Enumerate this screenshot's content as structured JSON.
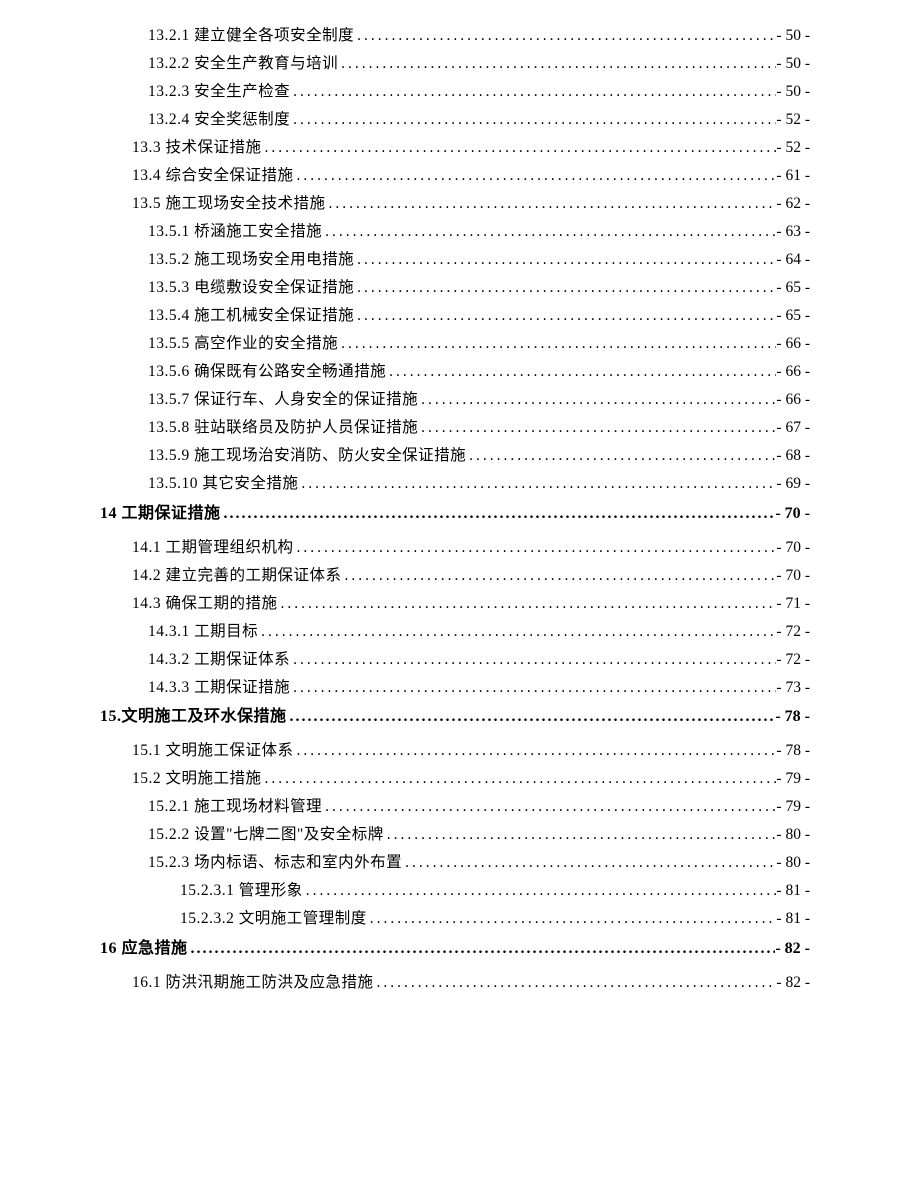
{
  "entries": [
    {
      "level": 3,
      "label": "13.2.1 建立健全各项安全制度",
      "page": "- 50 -"
    },
    {
      "level": 3,
      "label": "13.2.2 安全生产教育与培训",
      "page": "- 50 -"
    },
    {
      "level": 3,
      "label": "13.2.3 安全生产检查",
      "page": "- 50 -"
    },
    {
      "level": 3,
      "label": "13.2.4 安全奖惩制度",
      "page": "- 52 -"
    },
    {
      "level": 2,
      "label": "13.3 技术保证措施",
      "page": "- 52 -"
    },
    {
      "level": 2,
      "label": "13.4 综合安全保证措施",
      "page": "- 61 -"
    },
    {
      "level": 2,
      "label": "13.5 施工现场安全技术措施",
      "page": "- 62 -"
    },
    {
      "level": 3,
      "label": "13.5.1 桥涵施工安全措施",
      "page": "- 63 -"
    },
    {
      "level": 3,
      "label": "13.5.2 施工现场安全用电措施",
      "page": "- 64 -"
    },
    {
      "level": 3,
      "label": "13.5.3 电缆敷设安全保证措施",
      "page": "- 65 -"
    },
    {
      "level": 3,
      "label": "13.5.4 施工机械安全保证措施",
      "page": "- 65 -"
    },
    {
      "level": 3,
      "label": "13.5.5 高空作业的安全措施",
      "page": "- 66 -"
    },
    {
      "level": 3,
      "label": "13.5.6 确保既有公路安全畅通措施",
      "page": "- 66 -"
    },
    {
      "level": 3,
      "label": "13.5.7 保证行车、人身安全的保证措施",
      "page": "- 66 -"
    },
    {
      "level": 3,
      "label": "13.5.8 驻站联络员及防护人员保证措施",
      "page": "- 67 -"
    },
    {
      "level": 3,
      "label": "13.5.9 施工现场治安消防、防火安全保证措施",
      "page": "- 68 -"
    },
    {
      "level": 3,
      "label": "13.5.10 其它安全措施",
      "page": "- 69 -"
    },
    {
      "level": 1,
      "label": "14 工期保证措施 ",
      "page": "- 70 -"
    },
    {
      "level": 2,
      "label": "14.1 工期管理组织机构",
      "page": "- 70 -"
    },
    {
      "level": 2,
      "label": "14.2 建立完善的工期保证体系",
      "page": "- 70 -"
    },
    {
      "level": 2,
      "label": "14.3 确保工期的措施",
      "page": "- 71 -"
    },
    {
      "level": 3,
      "label": "14.3.1 工期目标",
      "page": "- 72 -"
    },
    {
      "level": 3,
      "label": "14.3.2 工期保证体系",
      "page": "- 72 -"
    },
    {
      "level": 3,
      "label": "14.3.3 工期保证措施",
      "page": "- 73 -"
    },
    {
      "level": 1,
      "label": "15.文明施工及环水保措施",
      "page": "- 78 -"
    },
    {
      "level": 2,
      "label": "15.1 文明施工保证体系",
      "page": "- 78 -"
    },
    {
      "level": 2,
      "label": "15.2 文明施工措施",
      "page": "- 79 -"
    },
    {
      "level": 3,
      "label": "15.2.1 施工现场材料管理",
      "page": "- 79 -"
    },
    {
      "level": 3,
      "label": "15.2.2 设置\"七牌二图\"及安全标牌",
      "page": "- 80 -"
    },
    {
      "level": 3,
      "label": "15.2.3 场内标语、标志和室内外布置",
      "page": "- 80 -"
    },
    {
      "level": 4,
      "label": "15.2.3.1 管理形象 ",
      "page": "- 81 -"
    },
    {
      "level": 4,
      "label": "15.2.3.2 文明施工管理制度 ",
      "page": "- 81 -"
    },
    {
      "level": 1,
      "label": "16 应急措施 ",
      "page": "- 82 -"
    },
    {
      "level": 2,
      "label": "16.1 防洪汛期施工防洪及应急措施",
      "page": "- 82 -"
    }
  ]
}
